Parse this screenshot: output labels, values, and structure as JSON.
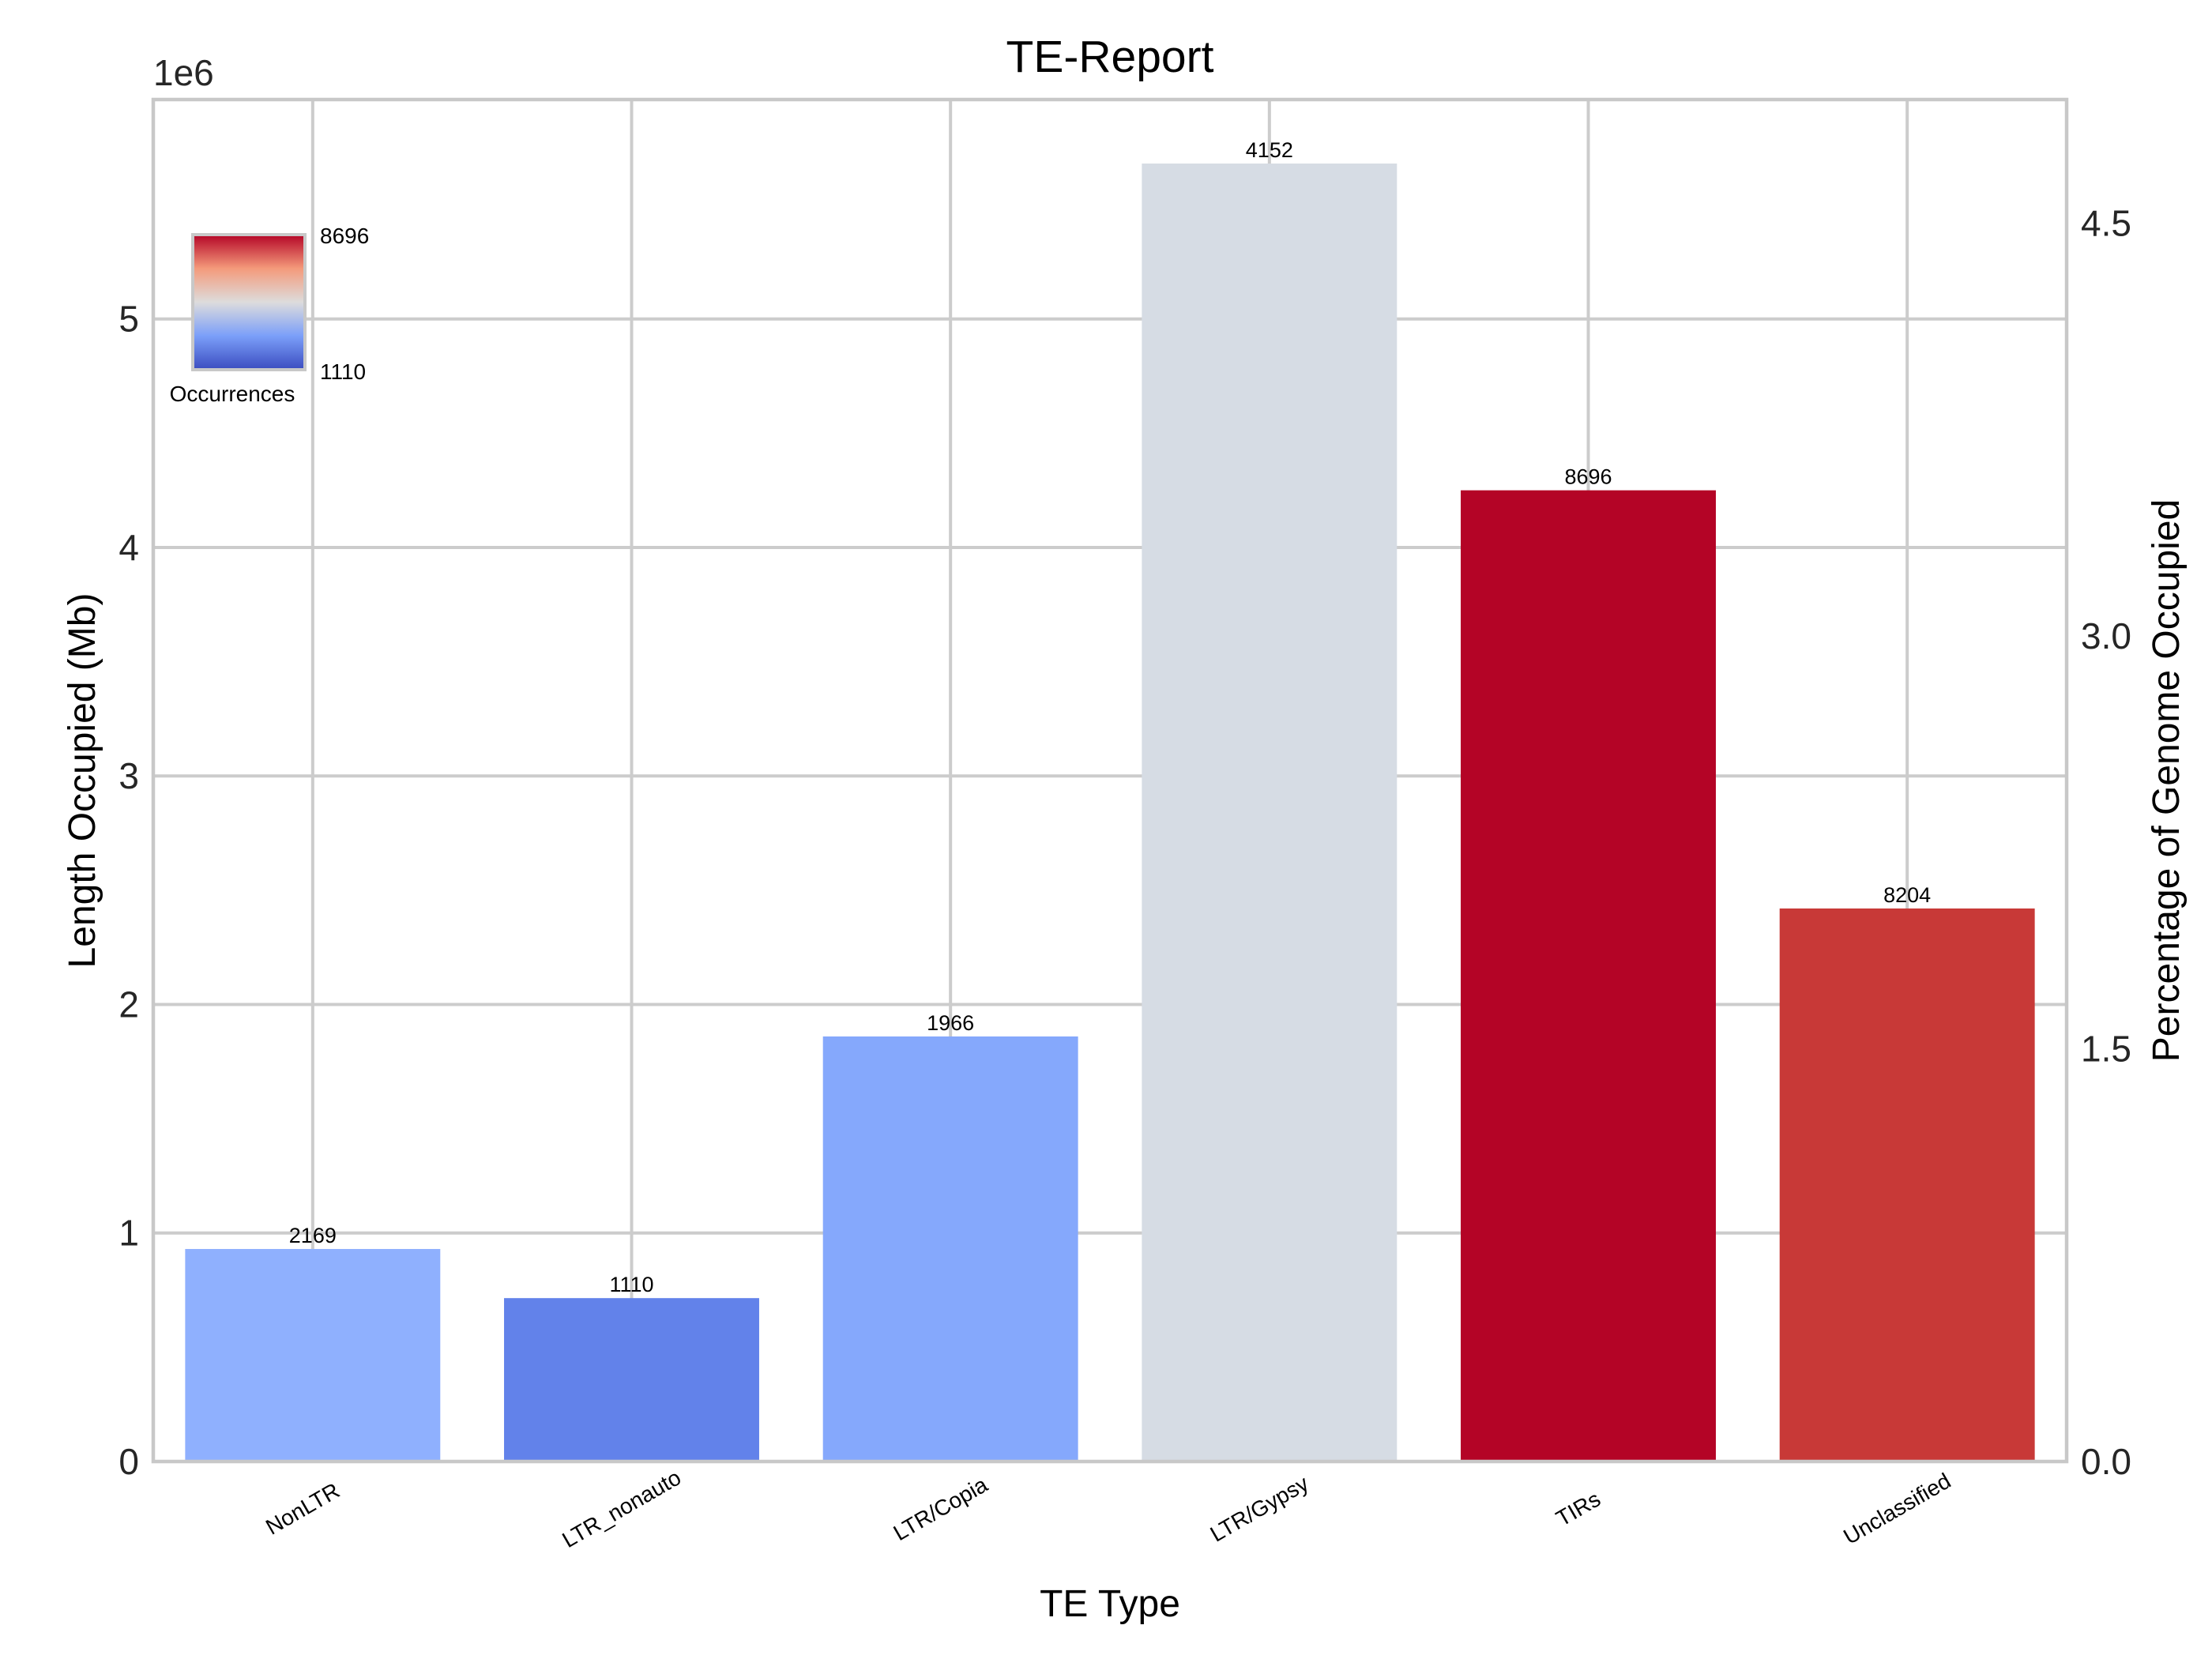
{
  "chart_data": {
    "type": "bar",
    "title": "TE-Report",
    "xlabel": "TE Type",
    "ylabel": "Length Occupied (Mb)",
    "y2label": "Percentage of Genome Occupied",
    "y_offset_label": "1e6",
    "categories": [
      "NonLTR",
      "LTR_nonauto",
      "LTR/Copia",
      "LTR/Gypsy",
      "TIRs",
      "Unclassified"
    ],
    "values": [
      930000,
      715000,
      1860000,
      5680000,
      4250000,
      2420000
    ],
    "occurrences": [
      2169,
      1110,
      1966,
      4152,
      8696,
      8204
    ],
    "occurrence_labels": [
      "2169",
      "1110",
      "1966",
      "4152",
      "8696",
      "8204"
    ],
    "bar_colors": [
      "#8fb0fe",
      "#6282ea",
      "#85a8fc",
      "#d6dce4",
      "#b40426",
      "#c83937"
    ],
    "ylim": [
      0,
      5960000
    ],
    "yticks": [
      0,
      1000000,
      2000000,
      3000000,
      4000000,
      5000000
    ],
    "ytick_labels": [
      "0",
      "1",
      "2",
      "3",
      "4",
      "5"
    ],
    "y2lim": [
      0,
      4.95
    ],
    "y2ticks": [
      0,
      1.5,
      3.0,
      4.5
    ],
    "y2tick_labels": [
      "0.0",
      "1.5",
      "3.0",
      "4.5"
    ],
    "grid": true,
    "colorbar": {
      "label": "Occurrences",
      "min_label": "1110",
      "max_label": "8696",
      "colormap": "coolwarm",
      "placement": "upper-left"
    }
  }
}
